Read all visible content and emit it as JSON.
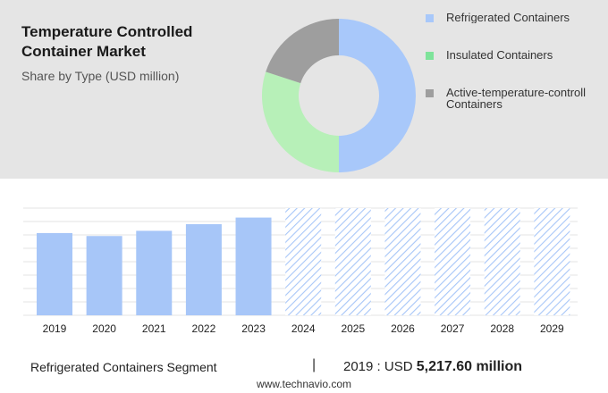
{
  "header": {
    "title": "Temperature Controlled Container Market",
    "subtitle": "Share by Type (USD million)"
  },
  "colors": {
    "refrigerated": "#a8c8fa",
    "insulated": "#b7f0b8",
    "active": "#9e9e9e",
    "bar": "#a7c6f8",
    "forecast_hatch": "#a7c6f8"
  },
  "legend": [
    {
      "label": "Refrigerated Containers",
      "color": "#a8c8fa"
    },
    {
      "label": "Insulated Containers",
      "color": "#7ee39a"
    },
    {
      "label_line1": "Active-temperature-controll",
      "label_line2": "Containers",
      "color": "#9e9e9e"
    }
  ],
  "chart_data": [
    {
      "type": "pie",
      "title": "Share by Type (USD million)",
      "categories": [
        "Refrigerated Containers",
        "Insulated Containers",
        "Active-temperature-controlled Containers"
      ],
      "values": [
        50,
        30,
        20
      ],
      "donut": true
    },
    {
      "type": "bar",
      "categories": [
        "2019",
        "2020",
        "2021",
        "2022",
        "2023",
        "2024",
        "2025",
        "2026",
        "2027",
        "2028",
        "2029"
      ],
      "values": [
        5217.6,
        5030,
        5360,
        5780,
        6200,
        null,
        null,
        null,
        null,
        null,
        null
      ],
      "forecast": [
        false,
        false,
        false,
        false,
        false,
        true,
        true,
        true,
        true,
        true,
        true
      ],
      "ylim": [
        0,
        6800
      ],
      "grid": true
    }
  ],
  "footer": {
    "segment": "Refrigerated Containers Segment",
    "divider": "|",
    "year_label": "2019 : USD",
    "value": "5,217.60 million",
    "source": "www.technavio.com"
  }
}
